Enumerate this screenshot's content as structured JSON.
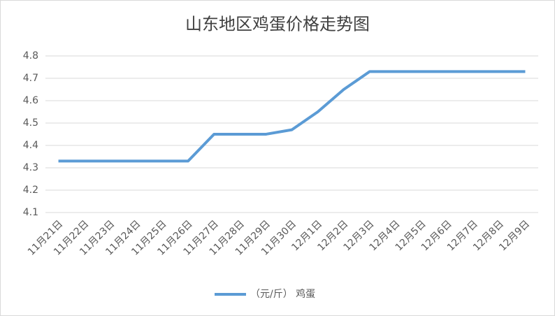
{
  "chart_data": {
    "type": "line",
    "title": "山东地区鸡蛋价格走势图",
    "categories": [
      "11月21日",
      "11月22日",
      "11月23日",
      "11月24日",
      "11月25日",
      "11月26日",
      "11月27日",
      "11月28日",
      "11月29日",
      "11月30日",
      "12月1日",
      "12月2日",
      "12月3日",
      "12月4日",
      "12月5日",
      "12月6日",
      "12月7日",
      "12月8日",
      "12月9日"
    ],
    "series": [
      {
        "name": "（元/斤） 鸡蛋",
        "color": "#5b9bd5",
        "values": [
          4.33,
          4.33,
          4.33,
          4.33,
          4.33,
          4.33,
          4.45,
          4.45,
          4.45,
          4.47,
          4.55,
          4.65,
          4.73,
          4.73,
          4.73,
          4.73,
          4.73,
          4.73,
          4.73
        ]
      }
    ],
    "ylim": [
      4.1,
      4.8
    ],
    "yticks": [
      4.1,
      4.2,
      4.3,
      4.4,
      4.5,
      4.6,
      4.7,
      4.8
    ],
    "grid": true,
    "legend": "bottom"
  }
}
